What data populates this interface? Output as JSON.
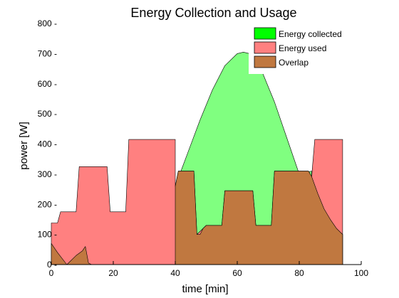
{
  "chart_data": {
    "type": "area",
    "title": "Energy Collection and Usage",
    "xlabel": "time [min]",
    "ylabel": "power [W]",
    "xlim": [
      0,
      100
    ],
    "ylim": [
      0,
      800
    ],
    "xticks": [
      0,
      20,
      40,
      60,
      80,
      100
    ],
    "yticks": [
      0,
      100,
      200,
      300,
      400,
      500,
      600,
      700,
      800
    ],
    "xtick_labels": [
      "0",
      "20",
      "40",
      "60",
      "80",
      "100"
    ],
    "ytick_labels": [
      "0 -",
      "100 -",
      "200 -",
      "300 -",
      "400 -",
      "500 -",
      "600 -",
      "700 -",
      "800 -"
    ],
    "grid": false,
    "legend_position": "top-right",
    "series": [
      {
        "name": "Energy collected",
        "color": "#80ff80",
        "legend_color": "#00ff00",
        "x": [
          40,
          44,
          48,
          52,
          56,
          60,
          62,
          64,
          68,
          72,
          76,
          80,
          84
        ],
        "y": [
          260,
          370,
          480,
          580,
          660,
          700,
          705,
          700,
          640,
          540,
          420,
          300,
          310
        ]
      },
      {
        "name": "Energy used",
        "color": "#ff8080",
        "legend_color": "#ff8080",
        "x": [
          0,
          2,
          3,
          8,
          9,
          18,
          19,
          24,
          25,
          40,
          40,
          41,
          46,
          47,
          50,
          55,
          56,
          65,
          66,
          71,
          72,
          83,
          84,
          86,
          88,
          90,
          92,
          94
        ],
        "y": [
          138,
          138,
          175,
          175,
          325,
          325,
          175,
          175,
          415,
          415,
          260,
          310,
          310,
          100,
          130,
          130,
          245,
          245,
          130,
          130,
          310,
          310,
          292,
          235,
          185,
          150,
          120,
          100
        ]
      },
      {
        "name": "Overlap",
        "color": "#c07840",
        "legend_color": "#c07840",
        "x": [
          0,
          2,
          5,
          8,
          10,
          11,
          12,
          13,
          40,
          40,
          41,
          46,
          47,
          48,
          49,
          50,
          55,
          56,
          65,
          66,
          71,
          72,
          83,
          84,
          86,
          88,
          90,
          92,
          94
        ],
        "y": [
          70,
          40,
          0,
          30,
          45,
          60,
          5,
          0,
          0,
          260,
          310,
          310,
          100,
          100,
          120,
          130,
          130,
          245,
          245,
          130,
          130,
          310,
          310,
          292,
          235,
          185,
          150,
          120,
          100
        ]
      }
    ],
    "used_cap": {
      "x": [
        84,
        85,
        94,
        94
      ],
      "y": [
        292,
        415,
        415,
        100
      ]
    }
  }
}
